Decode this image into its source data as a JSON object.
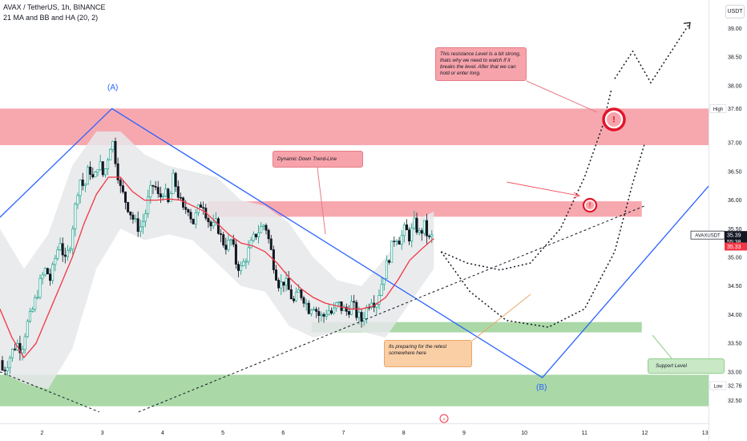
{
  "header": {
    "symbol_line": "AVAX / TetherUS, 1h, BINANCE",
    "indicator_line": "21 MA and BB and HA (20, 2)"
  },
  "currency_button": "USDT",
  "price_axis": {
    "ticks": [
      "39.00",
      "38.50",
      "38.00",
      "37.00",
      "36.50",
      "36.00",
      "35.50",
      "35.00",
      "34.50",
      "34.00",
      "33.50",
      "33.00",
      "32.50"
    ],
    "high_label": "High",
    "high_value": "37.60",
    "low_label": "Low",
    "low_value": "32.76",
    "ticker_label": "AVAXUSDT",
    "current_price": "35.39",
    "countdown": "55:38",
    "ma_value": "35.33"
  },
  "time_axis": {
    "ticks": [
      "2",
      "3",
      "4",
      "5",
      "6",
      "7",
      "8",
      "9",
      "10",
      "11",
      "12",
      "13"
    ]
  },
  "annotations": {
    "resistance_note": "This resistance Level Is a bit strong, thats why we need to watch If it breaks the level. After that we can hold or enter long.",
    "trendline_note": "Dynamic Down Trend-Line",
    "retest_note": "Its preparing for the retest somewhere here",
    "support_note": "Support Level",
    "wave_a": "(A)",
    "wave_b": "(B)",
    "alert_glyph": "!",
    "lightning_glyph": "⚡"
  },
  "colors": {
    "up": "#089981",
    "down": "#131722",
    "ma": "#f23645",
    "band": "#e6e7ea",
    "resistance_zone": "#f7a3ab",
    "support_zone": "#a5d6a2",
    "trend": "#2962ff",
    "price_tag": "#131722",
    "ma_tag": "#f23645"
  },
  "chart_data": {
    "type": "candlestick",
    "symbol": "AVAX / TetherUS",
    "interval": "1h",
    "x_ticks": [
      "2",
      "3",
      "4",
      "5",
      "6",
      "7",
      "8",
      "9",
      "10",
      "11",
      "12",
      "13"
    ],
    "y_ticks": [
      32.5,
      33.0,
      33.5,
      34.0,
      34.5,
      35.0,
      35.5,
      36.0,
      36.5,
      37.0,
      37.5,
      38.0,
      38.5,
      39.0
    ],
    "ylim": [
      32.2,
      39.25
    ],
    "xlim": [
      1.3,
      13.35
    ],
    "close_path": [
      [
        1.3,
        33.2
      ],
      [
        1.35,
        33.0
      ],
      [
        1.42,
        33.15
      ],
      [
        1.5,
        33.35
      ],
      [
        1.58,
        33.5
      ],
      [
        1.66,
        33.4
      ],
      [
        1.74,
        33.8
      ],
      [
        1.82,
        34.0
      ],
      [
        1.9,
        34.3
      ],
      [
        1.98,
        34.6
      ],
      [
        2.06,
        34.8
      ],
      [
        2.14,
        34.6
      ],
      [
        2.22,
        35.0
      ],
      [
        2.3,
        35.3
      ],
      [
        2.38,
        34.9
      ],
      [
        2.46,
        35.2
      ],
      [
        2.54,
        35.8
      ],
      [
        2.62,
        36.4
      ],
      [
        2.7,
        36.2
      ],
      [
        2.78,
        36.6
      ],
      [
        2.86,
        36.3
      ],
      [
        2.94,
        36.7
      ],
      [
        3.02,
        36.4
      ],
      [
        3.1,
        36.8
      ],
      [
        3.16,
        37.1
      ],
      [
        3.22,
        36.7
      ],
      [
        3.3,
        36.2
      ],
      [
        3.38,
        36.0
      ],
      [
        3.46,
        35.8
      ],
      [
        3.54,
        35.6
      ],
      [
        3.62,
        35.5
      ],
      [
        3.7,
        35.7
      ],
      [
        3.78,
        36.1
      ],
      [
        3.86,
        36.3
      ],
      [
        3.94,
        36.0
      ],
      [
        4.02,
        36.2
      ],
      [
        4.1,
        35.9
      ],
      [
        4.18,
        36.4
      ],
      [
        4.26,
        36.1
      ],
      [
        4.34,
        35.8
      ],
      [
        4.42,
        35.9
      ],
      [
        4.5,
        35.6
      ],
      [
        4.58,
        35.8
      ],
      [
        4.66,
        36.0
      ],
      [
        4.74,
        35.7
      ],
      [
        4.82,
        35.5
      ],
      [
        4.9,
        35.6
      ],
      [
        4.98,
        35.3
      ],
      [
        5.06,
        35.2
      ],
      [
        5.14,
        35.3
      ],
      [
        5.22,
        34.9
      ],
      [
        5.3,
        34.8
      ],
      [
        5.38,
        35.0
      ],
      [
        5.46,
        35.2
      ],
      [
        5.54,
        35.4
      ],
      [
        5.62,
        35.5
      ],
      [
        5.7,
        35.6
      ],
      [
        5.78,
        35.2
      ],
      [
        5.86,
        34.8
      ],
      [
        5.94,
        34.5
      ],
      [
        6.02,
        34.6
      ],
      [
        6.1,
        34.4
      ],
      [
        6.18,
        34.2
      ],
      [
        6.26,
        34.4
      ],
      [
        6.34,
        34.3
      ],
      [
        6.42,
        34.1
      ],
      [
        6.5,
        34.2
      ],
      [
        6.58,
        34.0
      ],
      [
        6.66,
        33.95
      ],
      [
        6.74,
        34.1
      ],
      [
        6.82,
        34.0
      ],
      [
        6.9,
        34.2
      ],
      [
        6.98,
        34.1
      ],
      [
        7.06,
        34.05
      ],
      [
        7.14,
        34.2
      ],
      [
        7.22,
        34.0
      ],
      [
        7.3,
        33.9
      ],
      [
        7.38,
        34.1
      ],
      [
        7.46,
        34.3
      ],
      [
        7.54,
        34.2
      ],
      [
        7.62,
        34.5
      ],
      [
        7.7,
        34.8
      ],
      [
        7.78,
        35.1
      ],
      [
        7.86,
        35.4
      ],
      [
        7.94,
        35.3
      ],
      [
        8.02,
        35.5
      ],
      [
        8.1,
        35.35
      ],
      [
        8.18,
        35.6
      ],
      [
        8.26,
        35.4
      ],
      [
        8.34,
        35.55
      ],
      [
        8.42,
        35.3
      ],
      [
        8.5,
        35.39
      ]
    ],
    "ma21_path": [
      [
        1.3,
        34.1
      ],
      [
        1.5,
        33.6
      ],
      [
        1.7,
        33.25
      ],
      [
        1.9,
        33.5
      ],
      [
        2.1,
        34.0
      ],
      [
        2.3,
        34.5
      ],
      [
        2.5,
        35.0
      ],
      [
        2.7,
        35.6
      ],
      [
        2.9,
        36.1
      ],
      [
        3.1,
        36.4
      ],
      [
        3.3,
        36.4
      ],
      [
        3.5,
        36.15
      ],
      [
        3.7,
        36.0
      ],
      [
        3.9,
        36.0
      ],
      [
        4.1,
        36.02
      ],
      [
        4.3,
        36.0
      ],
      [
        4.5,
        35.9
      ],
      [
        4.7,
        35.8
      ],
      [
        4.9,
        35.6
      ],
      [
        5.1,
        35.4
      ],
      [
        5.3,
        35.25
      ],
      [
        5.5,
        35.2
      ],
      [
        5.7,
        35.1
      ],
      [
        5.9,
        34.9
      ],
      [
        6.1,
        34.65
      ],
      [
        6.3,
        34.45
      ],
      [
        6.5,
        34.3
      ],
      [
        6.7,
        34.2
      ],
      [
        6.9,
        34.15
      ],
      [
        7.1,
        34.1
      ],
      [
        7.3,
        34.1
      ],
      [
        7.5,
        34.15
      ],
      [
        7.7,
        34.3
      ],
      [
        7.9,
        34.6
      ],
      [
        8.1,
        34.95
      ],
      [
        8.3,
        35.15
      ],
      [
        8.5,
        35.33
      ]
    ],
    "bollinger_upper": [
      [
        1.3,
        35.5
      ],
      [
        1.7,
        34.8
      ],
      [
        2.1,
        35.4
      ],
      [
        2.5,
        36.6
      ],
      [
        2.9,
        37.2
      ],
      [
        3.3,
        37.2
      ],
      [
        3.7,
        36.8
      ],
      [
        4.1,
        36.6
      ],
      [
        4.5,
        36.5
      ],
      [
        4.9,
        36.4
      ],
      [
        5.3,
        36.0
      ],
      [
        5.7,
        35.9
      ],
      [
        6.1,
        35.6
      ],
      [
        6.5,
        35.0
      ],
      [
        6.9,
        34.6
      ],
      [
        7.3,
        34.5
      ],
      [
        7.7,
        35.0
      ],
      [
        8.1,
        35.6
      ],
      [
        8.5,
        35.8
      ]
    ],
    "bollinger_lower": [
      [
        1.3,
        33.0
      ],
      [
        1.7,
        32.8
      ],
      [
        2.1,
        32.7
      ],
      [
        2.5,
        33.4
      ],
      [
        2.9,
        34.8
      ],
      [
        3.3,
        35.5
      ],
      [
        3.7,
        35.3
      ],
      [
        4.1,
        35.4
      ],
      [
        4.5,
        35.3
      ],
      [
        4.9,
        34.9
      ],
      [
        5.3,
        34.5
      ],
      [
        5.7,
        34.4
      ],
      [
        6.1,
        33.8
      ],
      [
        6.5,
        33.6
      ],
      [
        6.9,
        33.7
      ],
      [
        7.3,
        33.7
      ],
      [
        7.7,
        33.6
      ],
      [
        8.1,
        34.2
      ],
      [
        8.5,
        34.8
      ]
    ],
    "zones": [
      {
        "name": "resistance_high",
        "from": 36.96,
        "to": 37.6,
        "x_from": 1.3,
        "x_to": 13.35
      },
      {
        "name": "resistance_mid",
        "from": 35.71,
        "to": 35.98,
        "x_from": 4.75,
        "x_to": 11.95
      },
      {
        "name": "support_retest",
        "from": 33.69,
        "to": 33.87,
        "x_from": 6.47,
        "x_to": 11.95
      },
      {
        "name": "support_low",
        "from": 32.4,
        "to": 32.95,
        "x_from": 1.3,
        "x_to": 13.35
      }
    ],
    "trend_lines": [
      {
        "style": "solid",
        "points": [
          [
            1.3,
            35.7
          ],
          [
            3.16,
            37.6
          ],
          [
            10.3,
            32.9
          ],
          [
            13.35,
            36.6
          ]
        ]
      },
      {
        "style": "dashed",
        "points": [
          [
            1.3,
            33.0
          ],
          [
            2.95,
            32.3
          ]
        ]
      },
      {
        "style": "dashed",
        "points": [
          [
            3.6,
            32.3
          ],
          [
            12.0,
            35.9
          ]
        ]
      }
    ],
    "projection_paths": [
      {
        "style": "dotted",
        "points": [
          [
            8.62,
            35.1
          ],
          [
            9.05,
            34.9
          ],
          [
            9.6,
            34.78
          ],
          [
            10.1,
            34.9
          ],
          [
            10.6,
            35.5
          ],
          [
            11.0,
            36.4
          ],
          [
            11.3,
            37.3
          ],
          [
            11.45,
            37.95
          ]
        ]
      },
      {
        "style": "dotted",
        "points": [
          [
            8.62,
            35.1
          ],
          [
            9.1,
            34.4
          ],
          [
            9.7,
            33.9
          ],
          [
            10.4,
            33.78
          ],
          [
            11.0,
            34.1
          ],
          [
            11.5,
            35.1
          ],
          [
            11.8,
            36.3
          ],
          [
            12.0,
            37.0
          ]
        ]
      },
      {
        "style": "dotted",
        "points": [
          [
            11.5,
            38.12
          ],
          [
            11.8,
            38.6
          ],
          [
            12.1,
            38.05
          ],
          [
            12.75,
            39.1
          ]
        ]
      }
    ],
    "labels": [
      {
        "text": "(A)",
        "x": 3.16,
        "price": 37.6
      },
      {
        "text": "(B)",
        "x": 10.3,
        "price": 32.9
      }
    ],
    "last_price": 35.39,
    "ma_last": 35.33,
    "high": 37.6,
    "low": 32.76
  }
}
